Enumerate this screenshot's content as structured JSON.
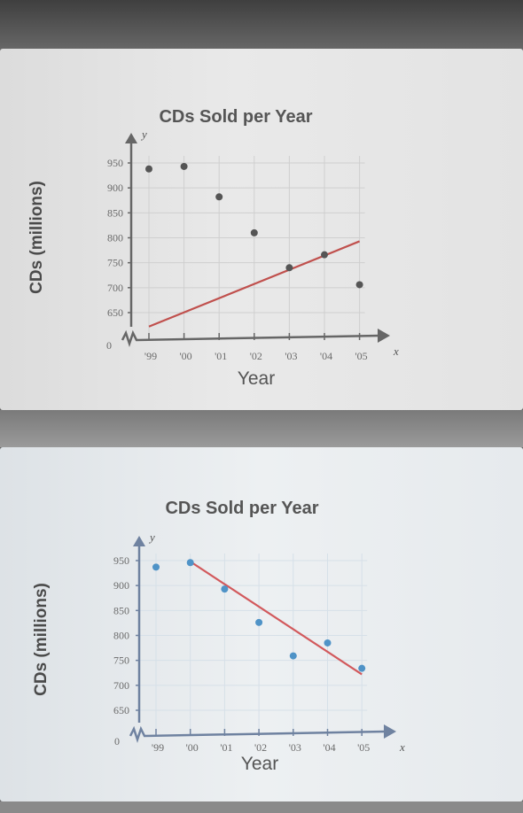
{
  "chart_data": [
    {
      "type": "scatter",
      "title": "CDs Sold per Year",
      "xlabel": "Year",
      "ylabel": "CDs (millions)",
      "x_axis_var": "x",
      "y_axis_var": "y",
      "origin_label": "0",
      "categories": [
        "'99",
        "'00",
        "'01",
        "'02",
        "'03",
        "'04",
        "'05"
      ],
      "yticks": [
        650,
        700,
        750,
        800,
        850,
        900,
        950
      ],
      "ylim": [
        620,
        960
      ],
      "grid": true,
      "series": [
        {
          "values": [
            938,
            943,
            882,
            810,
            740,
            766,
            706
          ]
        }
      ],
      "trend_line": {
        "from": {
          "x": "'99",
          "y": 622
        },
        "to": {
          "x": "'05",
          "y": 793
        }
      },
      "colors": {
        "points": "#555555",
        "line": "#c0504d",
        "axis": "#666666",
        "grid": "#cfcfcf"
      }
    },
    {
      "type": "scatter",
      "title": "CDs Sold per Year",
      "xlabel": "Year",
      "ylabel": "CDs (millions)",
      "x_axis_var": "x",
      "y_axis_var": "y",
      "origin_label": "0",
      "categories": [
        "'99",
        "'00",
        "'01",
        "'02",
        "'03",
        "'04",
        "'05"
      ],
      "yticks": [
        650,
        700,
        750,
        800,
        850,
        900,
        950
      ],
      "ylim": [
        620,
        960
      ],
      "grid": true,
      "series": [
        {
          "values": [
            937,
            946,
            893,
            826,
            759,
            785,
            734
          ]
        }
      ],
      "trend_line": {
        "from": {
          "x": "'00",
          "y": 948
        },
        "to": {
          "x": "'05",
          "y": 722
        }
      },
      "colors": {
        "points": "#4f93c7",
        "line": "#d2595c",
        "axis": "#6f82a0",
        "grid": "#d6e0e8"
      }
    }
  ]
}
